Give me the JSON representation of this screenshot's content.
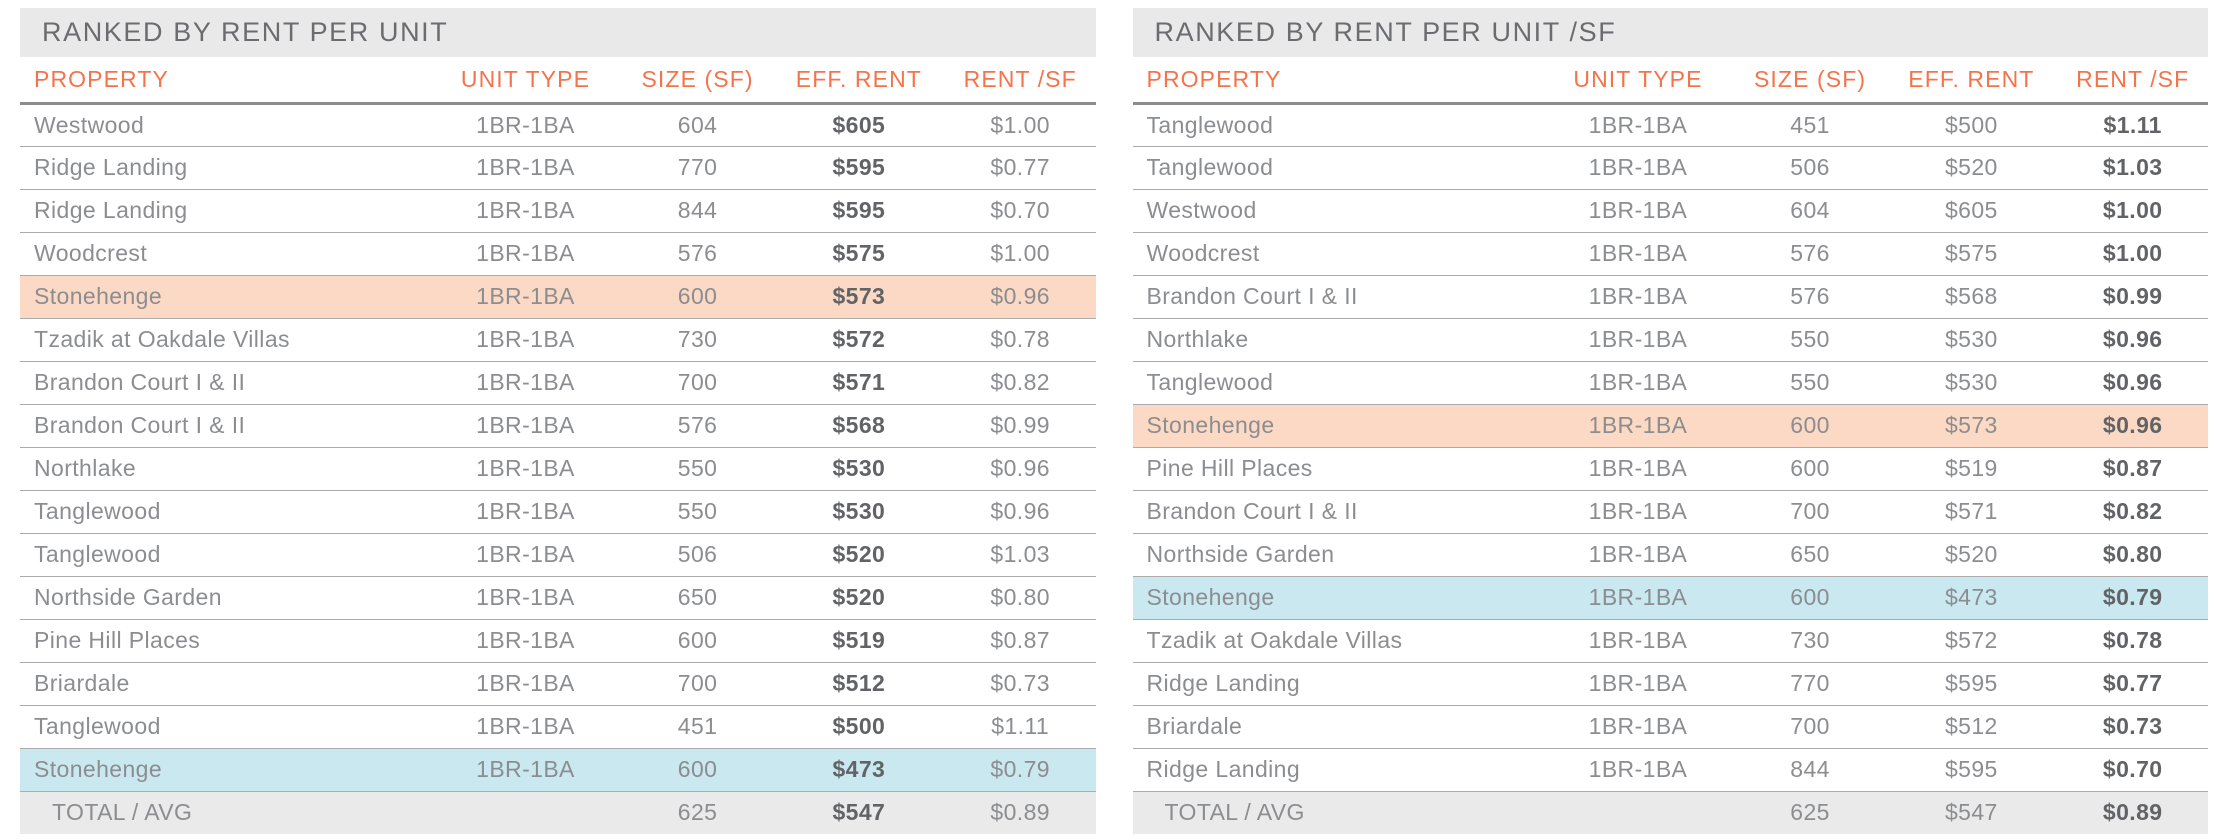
{
  "report": {
    "accent": {
      "column_header_text": "#F5734A",
      "title_bar_bg": "#E9E9E9",
      "title_text": "#6A6C6F",
      "body_text": "#8B8D90",
      "bold_text": "#616366",
      "total_row_bg": "#EAEAEA",
      "row_border": "#ABABAB",
      "header_border": "#8C8C8C"
    },
    "highlight_colors": {
      "orange": "#FCD9C4",
      "blue": "#C9E8F0"
    },
    "tables": [
      {
        "name": "rent-per-unit",
        "title": "RANKED BY RENT PER UNIT",
        "columns": [
          "PROPERTY",
          "UNIT TYPE",
          "SIZE (SF)",
          "EFF. RENT",
          "RENT /SF"
        ],
        "bold_column_index": 3,
        "rows": [
          {
            "property": "Westwood",
            "unit_type": "1BR-1BA",
            "size": "604",
            "eff_rent": "$605",
            "rent_sf": "$1.00",
            "highlight": ""
          },
          {
            "property": "Ridge Landing",
            "unit_type": "1BR-1BA",
            "size": "770",
            "eff_rent": "$595",
            "rent_sf": "$0.77",
            "highlight": ""
          },
          {
            "property": "Ridge Landing",
            "unit_type": "1BR-1BA",
            "size": "844",
            "eff_rent": "$595",
            "rent_sf": "$0.70",
            "highlight": ""
          },
          {
            "property": "Woodcrest",
            "unit_type": "1BR-1BA",
            "size": "576",
            "eff_rent": "$575",
            "rent_sf": "$1.00",
            "highlight": ""
          },
          {
            "property": "Stonehenge",
            "unit_type": "1BR-1BA",
            "size": "600",
            "eff_rent": "$573",
            "rent_sf": "$0.96",
            "highlight": "orange"
          },
          {
            "property": "Tzadik at Oakdale Villas",
            "unit_type": "1BR-1BA",
            "size": "730",
            "eff_rent": "$572",
            "rent_sf": "$0.78",
            "highlight": ""
          },
          {
            "property": "Brandon Court I & II",
            "unit_type": "1BR-1BA",
            "size": "700",
            "eff_rent": "$571",
            "rent_sf": "$0.82",
            "highlight": ""
          },
          {
            "property": "Brandon Court I & II",
            "unit_type": "1BR-1BA",
            "size": "576",
            "eff_rent": "$568",
            "rent_sf": "$0.99",
            "highlight": ""
          },
          {
            "property": "Northlake",
            "unit_type": "1BR-1BA",
            "size": "550",
            "eff_rent": "$530",
            "rent_sf": "$0.96",
            "highlight": ""
          },
          {
            "property": "Tanglewood",
            "unit_type": "1BR-1BA",
            "size": "550",
            "eff_rent": "$530",
            "rent_sf": "$0.96",
            "highlight": ""
          },
          {
            "property": "Tanglewood",
            "unit_type": "1BR-1BA",
            "size": "506",
            "eff_rent": "$520",
            "rent_sf": "$1.03",
            "highlight": ""
          },
          {
            "property": "Northside Garden",
            "unit_type": "1BR-1BA",
            "size": "650",
            "eff_rent": "$520",
            "rent_sf": "$0.80",
            "highlight": ""
          },
          {
            "property": "Pine Hill Places",
            "unit_type": "1BR-1BA",
            "size": "600",
            "eff_rent": "$519",
            "rent_sf": "$0.87",
            "highlight": ""
          },
          {
            "property": "Briardale",
            "unit_type": "1BR-1BA",
            "size": "700",
            "eff_rent": "$512",
            "rent_sf": "$0.73",
            "highlight": ""
          },
          {
            "property": "Tanglewood",
            "unit_type": "1BR-1BA",
            "size": "451",
            "eff_rent": "$500",
            "rent_sf": "$1.11",
            "highlight": ""
          },
          {
            "property": "Stonehenge",
            "unit_type": "1BR-1BA",
            "size": "600",
            "eff_rent": "$473",
            "rent_sf": "$0.79",
            "highlight": "blue"
          }
        ],
        "total_row": {
          "property": "TOTAL / AVG",
          "unit_type": "",
          "size": "625",
          "eff_rent": "$547",
          "rent_sf": "$0.89"
        }
      },
      {
        "name": "rent-per-sf",
        "title": "RANKED BY RENT PER UNIT /SF",
        "columns": [
          "PROPERTY",
          "UNIT TYPE",
          "SIZE (SF)",
          "EFF. RENT",
          "RENT /SF"
        ],
        "bold_column_index": 4,
        "rows": [
          {
            "property": "Tanglewood",
            "unit_type": "1BR-1BA",
            "size": "451",
            "eff_rent": "$500",
            "rent_sf": "$1.11",
            "highlight": ""
          },
          {
            "property": "Tanglewood",
            "unit_type": "1BR-1BA",
            "size": "506",
            "eff_rent": "$520",
            "rent_sf": "$1.03",
            "highlight": ""
          },
          {
            "property": "Westwood",
            "unit_type": "1BR-1BA",
            "size": "604",
            "eff_rent": "$605",
            "rent_sf": "$1.00",
            "highlight": ""
          },
          {
            "property": "Woodcrest",
            "unit_type": "1BR-1BA",
            "size": "576",
            "eff_rent": "$575",
            "rent_sf": "$1.00",
            "highlight": ""
          },
          {
            "property": "Brandon Court I & II",
            "unit_type": "1BR-1BA",
            "size": "576",
            "eff_rent": "$568",
            "rent_sf": "$0.99",
            "highlight": ""
          },
          {
            "property": "Northlake",
            "unit_type": "1BR-1BA",
            "size": "550",
            "eff_rent": "$530",
            "rent_sf": "$0.96",
            "highlight": ""
          },
          {
            "property": "Tanglewood",
            "unit_type": "1BR-1BA",
            "size": "550",
            "eff_rent": "$530",
            "rent_sf": "$0.96",
            "highlight": ""
          },
          {
            "property": "Stonehenge",
            "unit_type": "1BR-1BA",
            "size": "600",
            "eff_rent": "$573",
            "rent_sf": "$0.96",
            "highlight": "orange"
          },
          {
            "property": "Pine Hill Places",
            "unit_type": "1BR-1BA",
            "size": "600",
            "eff_rent": "$519",
            "rent_sf": "$0.87",
            "highlight": ""
          },
          {
            "property": "Brandon Court I & II",
            "unit_type": "1BR-1BA",
            "size": "700",
            "eff_rent": "$571",
            "rent_sf": "$0.82",
            "highlight": ""
          },
          {
            "property": "Northside Garden",
            "unit_type": "1BR-1BA",
            "size": "650",
            "eff_rent": "$520",
            "rent_sf": "$0.80",
            "highlight": ""
          },
          {
            "property": "Stonehenge",
            "unit_type": "1BR-1BA",
            "size": "600",
            "eff_rent": "$473",
            "rent_sf": "$0.79",
            "highlight": "blue"
          },
          {
            "property": "Tzadik at Oakdale Villas",
            "unit_type": "1BR-1BA",
            "size": "730",
            "eff_rent": "$572",
            "rent_sf": "$0.78",
            "highlight": ""
          },
          {
            "property": "Ridge Landing",
            "unit_type": "1BR-1BA",
            "size": "770",
            "eff_rent": "$595",
            "rent_sf": "$0.77",
            "highlight": ""
          },
          {
            "property": "Briardale",
            "unit_type": "1BR-1BA",
            "size": "700",
            "eff_rent": "$512",
            "rent_sf": "$0.73",
            "highlight": ""
          },
          {
            "property": "Ridge Landing",
            "unit_type": "1BR-1BA",
            "size": "844",
            "eff_rent": "$595",
            "rent_sf": "$0.70",
            "highlight": ""
          }
        ],
        "total_row": {
          "property": "TOTAL / AVG",
          "unit_type": "",
          "size": "625",
          "eff_rent": "$547",
          "rent_sf": "$0.89"
        }
      }
    ]
  }
}
